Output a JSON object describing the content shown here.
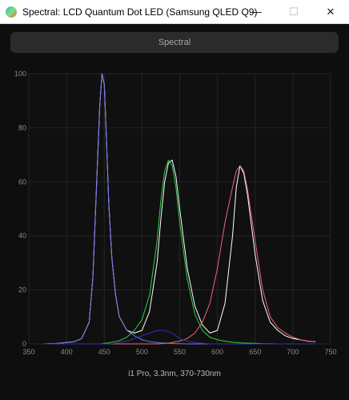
{
  "window": {
    "title": "Spectral: LCD Quantum Dot LED (Samsung QLED Q9)",
    "minimize_glyph": "—",
    "maximize_glyph": "☐",
    "close_glyph": "✕",
    "app_icon": "spectral-app-icon"
  },
  "toolbar": {
    "mode_label": "Spectral"
  },
  "footer": {
    "caption": "i1 Pro, 3.3nm, 370-730nm"
  },
  "chart_data": {
    "type": "line",
    "title": "",
    "xlabel": "",
    "ylabel": "",
    "xlim": [
      350,
      750
    ],
    "ylim": [
      0,
      100
    ],
    "x_ticks": [
      350,
      400,
      450,
      500,
      550,
      600,
      650,
      700,
      750
    ],
    "y_ticks": [
      0,
      20,
      40,
      60,
      80,
      100
    ],
    "grid": true,
    "legend": "none",
    "x": [
      370,
      390,
      410,
      420,
      430,
      435,
      440,
      444,
      447,
      450,
      453,
      456,
      460,
      465,
      470,
      480,
      490,
      500,
      510,
      520,
      525,
      530,
      535,
      540,
      545,
      550,
      560,
      570,
      580,
      590,
      600,
      610,
      620,
      625,
      630,
      635,
      640,
      650,
      660,
      670,
      680,
      690,
      700,
      710,
      720,
      730
    ],
    "series": [
      {
        "color": "#ffffff",
        "values": [
          0,
          0.2,
          0.8,
          2,
          8,
          25,
          60,
          88,
          100,
          96,
          75,
          52,
          32,
          18,
          10,
          5,
          4,
          5,
          12,
          30,
          46,
          60,
          67,
          68,
          62,
          50,
          28,
          14,
          7,
          4,
          5,
          15,
          40,
          58,
          66,
          63,
          55,
          33,
          16,
          8,
          5,
          3,
          2,
          1.5,
          1,
          0.8
        ]
      },
      {
        "color": "#7777ee",
        "values": [
          0,
          0.2,
          0.8,
          2,
          8,
          25,
          60,
          88,
          100,
          96,
          75,
          52,
          32,
          18,
          10,
          5,
          3,
          1.5,
          0.8,
          0.5,
          0.4,
          0.3,
          0.2,
          0.2,
          0.1,
          0.1,
          0,
          0,
          0,
          0,
          0,
          0,
          0,
          0,
          0,
          0,
          0,
          0,
          0,
          0,
          0,
          0,
          0,
          0,
          0,
          0
        ]
      },
      {
        "color": "#33cc44",
        "values": [
          0,
          0,
          0,
          0,
          0,
          0,
          0,
          0,
          0.1,
          0.2,
          0.3,
          0.4,
          0.6,
          0.9,
          1.2,
          2.5,
          5,
          9,
          18,
          38,
          53,
          64,
          68,
          66,
          58,
          45,
          24,
          11,
          5,
          2.5,
          1.5,
          1,
          0.6,
          0.5,
          0.4,
          0.3,
          0.3,
          0.2,
          0.1,
          0.1,
          0,
          0,
          0,
          0,
          0,
          0
        ]
      },
      {
        "color": "#ee6677",
        "values": [
          0,
          0,
          0,
          0,
          0,
          0,
          0,
          0,
          0,
          0,
          0,
          0,
          0,
          0,
          0,
          0,
          0,
          0,
          0,
          0,
          0.1,
          0.2,
          0.3,
          0.5,
          0.8,
          1,
          2,
          4,
          8,
          15,
          28,
          45,
          58,
          64,
          66,
          64,
          57,
          38,
          20,
          10,
          6,
          4,
          2.5,
          1.5,
          1,
          0.8
        ]
      },
      {
        "color": "#3030bb",
        "values": [
          0,
          0,
          0,
          0,
          0,
          0,
          0,
          0,
          0,
          0,
          0,
          0,
          0.1,
          0.2,
          0.5,
          1,
          2,
          3,
          4,
          5,
          5,
          5,
          4.5,
          4,
          3,
          2,
          1,
          0.5,
          0.2,
          0,
          0,
          0,
          0,
          0,
          0,
          0,
          0,
          0,
          0,
          0,
          0,
          0,
          0,
          0,
          0,
          0
        ]
      }
    ]
  }
}
